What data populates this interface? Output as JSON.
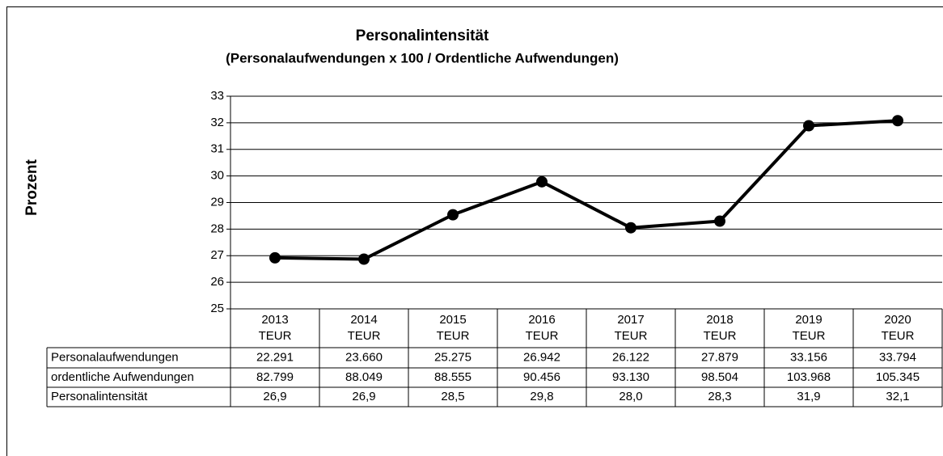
{
  "chart_data": {
    "type": "line",
    "title": "Personalintensität",
    "subtitle": "(Personalaufwendungen x 100 / Ordentliche Aufwendungen)",
    "y_label": "Prozent",
    "categories": [
      "2013",
      "2014",
      "2015",
      "2016",
      "2017",
      "2018",
      "2019",
      "2020"
    ],
    "category_unit": "TEUR",
    "series": [
      {
        "name": "Personalintensität",
        "color": "#000000",
        "values": [
          26.92,
          26.87,
          28.54,
          29.78,
          28.05,
          28.3,
          31.89,
          32.08
        ],
        "value_labels": [
          "26,9",
          "26,9",
          "28,5",
          "29,8",
          "28,0",
          "28,3",
          "31,9",
          "32,1"
        ]
      }
    ],
    "table_rows": [
      {
        "label": "Personalaufwendungen",
        "cells": [
          "22.291",
          "23.660",
          "25.275",
          "26.942",
          "26.122",
          "27.879",
          "33.156",
          "33.794"
        ]
      },
      {
        "label": "ordentliche Aufwendungen",
        "cells": [
          "82.799",
          "88.049",
          "88.555",
          "90.456",
          "93.130",
          "98.504",
          "103.968",
          "105.345"
        ]
      }
    ],
    "ylim": [
      25,
      33
    ],
    "yticks": [
      25,
      26,
      27,
      28,
      29,
      30,
      31,
      32,
      33
    ],
    "grid": true
  }
}
